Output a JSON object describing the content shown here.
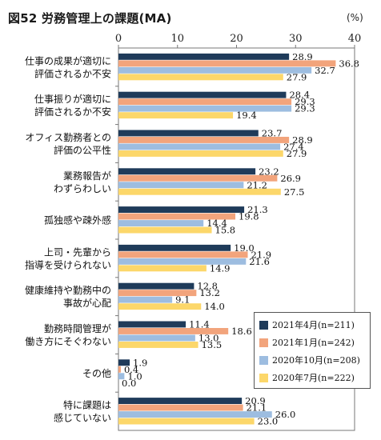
{
  "title": "図52 労務管理上の課題(MA)",
  "unit": "(%)",
  "chart_data": {
    "type": "bar",
    "orientation": "horizontal",
    "title": "図52 労務管理上の課題(MA)",
    "xlim": [
      0,
      40
    ],
    "x_ticks": [
      0,
      10,
      20,
      30,
      40
    ],
    "grid": false,
    "legend_position": "bottom-right",
    "categories": [
      [
        "仕事の成果が適切に",
        "評価されるか不安"
      ],
      [
        "仕事振りが適切に",
        "評価されるか不安"
      ],
      [
        "オフィス勤務者との",
        "評価の公平性"
      ],
      [
        "業務報告が",
        "わずらわしい"
      ],
      [
        "孤独感や疎外感"
      ],
      [
        "上司・先輩から",
        "指導を受けられない"
      ],
      [
        "健康維持や勤務中の",
        "事故が心配"
      ],
      [
        "勤務時間管理が",
        "働き方にそぐわない"
      ],
      [
        "その他"
      ],
      [
        "特に課題は",
        "感じていない"
      ]
    ],
    "series": [
      {
        "name": "2021年4月(n=211)",
        "color": "#1f3b5a",
        "values": [
          28.9,
          28.4,
          23.7,
          23.2,
          21.3,
          19.0,
          12.8,
          11.4,
          1.9,
          20.9
        ]
      },
      {
        "name": "2021年1月(n=242)",
        "color": "#f2a47c",
        "values": [
          36.8,
          29.3,
          28.9,
          26.9,
          19.8,
          21.9,
          13.2,
          18.6,
          0.4,
          21.1
        ]
      },
      {
        "name": "2020年10月(n=208)",
        "color": "#9dbde0",
        "values": [
          32.7,
          29.3,
          27.4,
          21.2,
          14.4,
          21.6,
          9.1,
          13.0,
          1.0,
          26.0
        ]
      },
      {
        "name": "2020年7月(n=222)",
        "color": "#fcd76a",
        "values": [
          27.9,
          19.4,
          27.9,
          27.5,
          15.8,
          14.9,
          14.0,
          13.5,
          0.0,
          23.0
        ]
      }
    ]
  }
}
